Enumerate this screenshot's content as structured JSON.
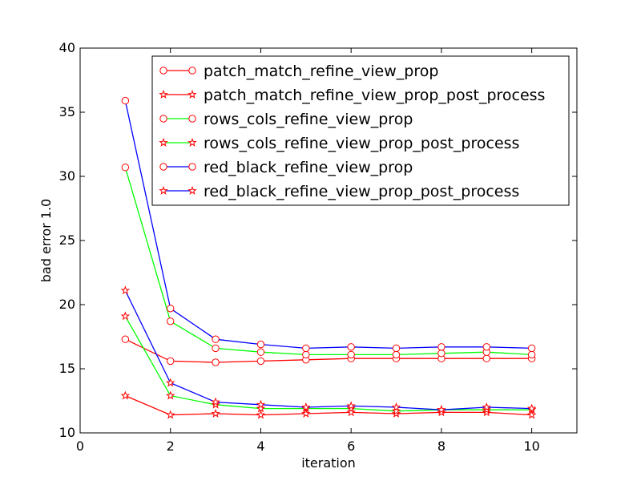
{
  "chart_data": {
    "type": "line",
    "title": "",
    "xlabel": "iteration",
    "ylabel": "bad error 1.0",
    "xlim": [
      0,
      11
    ],
    "ylim": [
      10,
      40
    ],
    "x_ticks": [
      0,
      2,
      4,
      6,
      8,
      10
    ],
    "y_ticks": [
      10,
      15,
      20,
      25,
      30,
      35,
      40
    ],
    "grid": false,
    "legend_position": "top-right",
    "x": [
      1,
      2,
      3,
      4,
      5,
      6,
      7,
      8,
      9,
      10
    ],
    "series": [
      {
        "name": "patch_match_refine_view_prop",
        "color": "#ff0000",
        "marker": "circle",
        "values": [
          17.3,
          15.6,
          15.5,
          15.6,
          15.7,
          15.8,
          15.8,
          15.8,
          15.8,
          15.8
        ]
      },
      {
        "name": "patch_match_refine_view_prop_post_process",
        "color": "#ff0000",
        "marker": "star",
        "values": [
          12.9,
          11.4,
          11.5,
          11.4,
          11.5,
          11.6,
          11.5,
          11.6,
          11.6,
          11.4
        ]
      },
      {
        "name": "rows_cols_refine_view_prop",
        "color": "#00ff00",
        "marker": "circle",
        "values": [
          30.7,
          18.7,
          16.6,
          16.3,
          16.1,
          16.1,
          16.1,
          16.2,
          16.3,
          16.1
        ]
      },
      {
        "name": "rows_cols_refine_view_prop_post_process",
        "color": "#00ff00",
        "marker": "star",
        "values": [
          19.1,
          12.9,
          12.2,
          11.9,
          11.9,
          11.9,
          11.7,
          11.8,
          11.8,
          11.8
        ]
      },
      {
        "name": "red_black_refine_view_prop",
        "color": "#0000ff",
        "marker": "circle",
        "values": [
          35.9,
          19.7,
          17.3,
          16.9,
          16.6,
          16.7,
          16.6,
          16.7,
          16.7,
          16.6
        ]
      },
      {
        "name": "red_black_refine_view_prop_post_process",
        "color": "#0000ff",
        "marker": "star",
        "values": [
          21.1,
          13.9,
          12.4,
          12.2,
          12.0,
          12.1,
          12.0,
          11.8,
          12.0,
          11.9
        ]
      }
    ],
    "marker_edge_color": "#ff0000",
    "marker_face_color": "#ffffff"
  }
}
